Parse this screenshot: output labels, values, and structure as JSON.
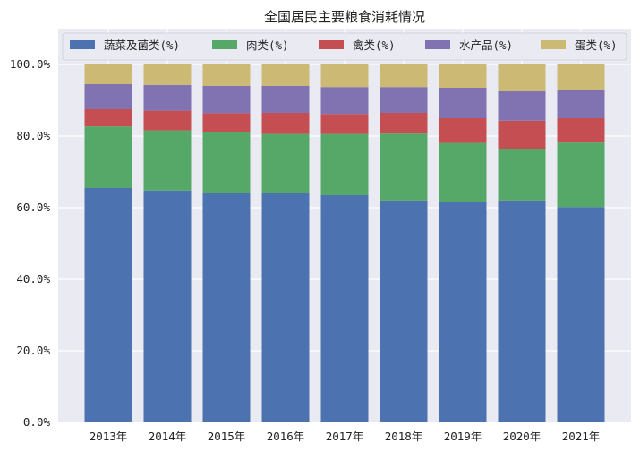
{
  "chart_data": {
    "type": "bar",
    "stacked": true,
    "title": "全国居民主要粮食消耗情况",
    "xlabel": "",
    "ylabel": "",
    "ylim": [
      0,
      1.1
    ],
    "y_ticks": [
      0,
      0.2,
      0.4,
      0.6,
      0.8,
      1.0
    ],
    "y_tick_labels": [
      "0.0%",
      "20.0%",
      "40.0%",
      "60.0%",
      "80.0%",
      "100.0%"
    ],
    "grid": true,
    "legend_position": "top",
    "categories": [
      "2013年",
      "2014年",
      "2015年",
      "2016年",
      "2017年",
      "2018年",
      "2019年",
      "2020年",
      "2021年"
    ],
    "series": [
      {
        "name": "蔬菜及菌类(%)",
        "color": "#4c72b0",
        "values": [
          0.655,
          0.648,
          0.64,
          0.64,
          0.635,
          0.618,
          0.615,
          0.618,
          0.602
        ]
      },
      {
        "name": "肉类(%)",
        "color": "#55a868",
        "values": [
          0.172,
          0.168,
          0.172,
          0.166,
          0.171,
          0.189,
          0.166,
          0.147,
          0.18
        ]
      },
      {
        "name": "禽类(%)",
        "color": "#c44e52",
        "values": [
          0.048,
          0.055,
          0.052,
          0.059,
          0.056,
          0.058,
          0.069,
          0.078,
          0.068
        ]
      },
      {
        "name": "水产品(%)",
        "color": "#8172b2",
        "values": [
          0.07,
          0.072,
          0.076,
          0.075,
          0.075,
          0.072,
          0.085,
          0.082,
          0.079
        ]
      },
      {
        "name": "蛋类(%)",
        "color": "#ccb974",
        "values": [
          0.055,
          0.057,
          0.06,
          0.06,
          0.063,
          0.063,
          0.065,
          0.075,
          0.071
        ]
      }
    ]
  }
}
